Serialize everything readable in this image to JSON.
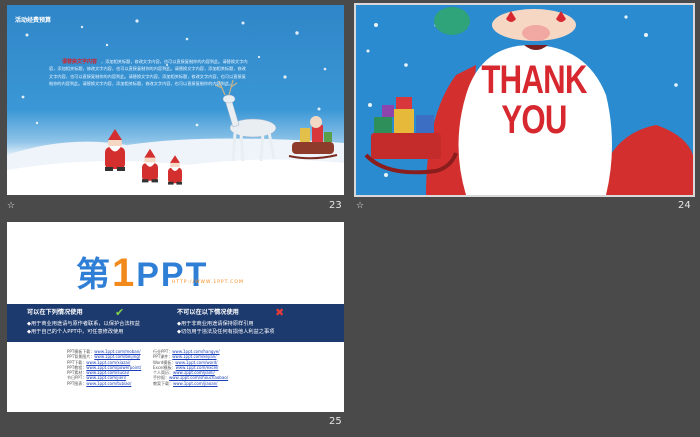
{
  "slides": [
    {
      "number": "23",
      "title": "活动经费预算",
      "heading": "请替换文字内容",
      "body": "，添加相关标题，修改文字内容，也可以直接复制你的内容到此。请替换文字内容，添加相关标题，修改文字内容，也可以直接复制你的内容到此。请替换文字内容，添加相关标题，修改文字内容，也可以直接复制你的内容到此。请替换文字内容，添加相关标题，修改文字内容，也可以直接复制你的内容到此。请替换文字内容，添加相关标题，修改文字内容，也可以直接复制你的内容到此。"
    },
    {
      "number": "24",
      "thank": "THANK",
      "you": "YOU"
    },
    {
      "number": "25",
      "logo": {
        "di": "第",
        "one": "1",
        "ppt": "PPT",
        "url": "HTTP://WWW.1PPT.COM"
      },
      "can_use": {
        "title": "可以在下列情况使用",
        "items": [
          "◆用于商业用途请与原作者联系，以保护合法权益",
          "◆用于自己的个人PPT中，可任意修改使用"
        ]
      },
      "cannot_use": {
        "title": "不可以在以下情况使用",
        "items": [
          "◆用于非商业用途请保持原样引用",
          "◆切勿用于违法及任何有损他人利益之事项"
        ]
      },
      "links_left": [
        {
          "label": "PPT模板下载：",
          "url": "www.1ppt.com/moban/"
        },
        {
          "label": "PPT背景图片：",
          "url": "www.1ppt.com/beijing/"
        },
        {
          "label": "PPT下载：",
          "url": "www.1ppt.com/xiazai/"
        },
        {
          "label": "PPT教程：",
          "url": "www.1ppt.com/powerpoint/"
        },
        {
          "label": "PPT素材：",
          "url": "www.1ppt.com/sucai/"
        },
        {
          "label": "节日PPT：",
          "url": "www.1ppt.com/jieri/"
        },
        {
          "label": "PPT图表：",
          "url": "www.1ppt.com/tubiao/"
        }
      ],
      "links_right": [
        {
          "label": "行业PPT：",
          "url": "www.1ppt.com/hangye/"
        },
        {
          "label": "PPT课件：",
          "url": "www.1ppt.com/kejian/"
        },
        {
          "label": "Word模板：",
          "url": "www.1ppt.com/word/"
        },
        {
          "label": "Excel模板：",
          "url": "www.1ppt.com/excel/"
        },
        {
          "label": "个人简历：",
          "url": "www.1ppt.com/jianli/"
        },
        {
          "label": "手抄报：",
          "url": "www.1ppt.com/shouchaobao/"
        },
        {
          "label": "教案下载：",
          "url": "www.1ppt.com/jiaoan/"
        }
      ]
    }
  ],
  "colors": {
    "background": "#4a4a4a",
    "sky": "#2a8bd0",
    "band": "#1d3a6e",
    "red": "#d7282f",
    "orange": "#f28a1b",
    "blue": "#2f7fd6"
  }
}
